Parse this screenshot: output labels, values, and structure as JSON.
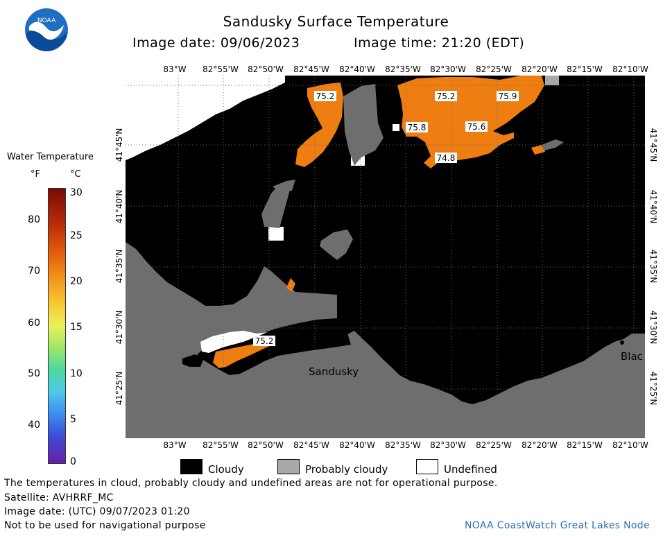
{
  "header": {
    "title": "Sandusky Surface Temperature",
    "image_date": "Image date: 09/06/2023",
    "image_time": "Image time: 21:20 (EDT)"
  },
  "logo": {
    "text": "NOAA",
    "icon": "noaa-logo"
  },
  "colorbar": {
    "title": "Water Temperature",
    "unit_f": "°F",
    "unit_c": "°C",
    "ticks_f": [
      "80",
      "70",
      "60",
      "50",
      "40"
    ],
    "ticks_c": [
      "30",
      "25",
      "20",
      "15",
      "10",
      "5",
      "0"
    ]
  },
  "longitudes": [
    "83°W",
    "82°55'W",
    "82°50'W",
    "82°45'W",
    "82°40'W",
    "82°35'W",
    "82°30'W",
    "82°25'W",
    "82°20'W",
    "82°15'W",
    "82°10'W"
  ],
  "latitudes": [
    "41°45'N",
    "41°40'N",
    "41°35'N",
    "41°30'N",
    "41°25'N"
  ],
  "map": {
    "temp_labels": [
      "75.2",
      "75.2",
      "75.9",
      "75.8",
      "75.6",
      "74.8",
      "75.2"
    ],
    "place_sandusky": "Sandusky",
    "place_blac": "Blac"
  },
  "legend": {
    "cloudy": "Cloudy",
    "probably_cloudy": "Probably cloudy",
    "undefined": "Undefined"
  },
  "notes": {
    "disclaimer": "The temperatures in cloud, probably cloudy and undefined areas are not for operational purpose.",
    "satellite": "Satellite: AVHRRF_MC",
    "utc_date": "Image date: (UTC) 09/07/2023  01:20",
    "navigation": "Not to be used for navigational purpose"
  },
  "credit": "NOAA CoastWatch Great Lakes Node",
  "colors": {
    "cloudy": "#000000",
    "probably_cloudy": "#6e6e6e",
    "undefined": "#ffffff",
    "water_warm": "#ee7d12",
    "land_gray": "#6e6e6e"
  }
}
